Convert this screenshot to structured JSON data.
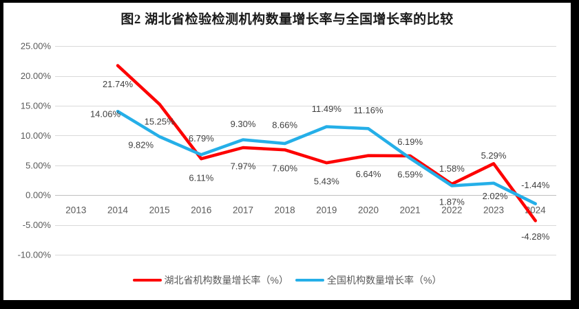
{
  "title": "图2  湖北省检验检测机构数量增长率与全国增长率的比较",
  "colors": {
    "hubei": "#FD0000",
    "national": "#25AFE8",
    "grid": "#D9D9D9",
    "axis": "#BFBFBF",
    "tick_text": "#595959",
    "label_text": "#3F3F3F",
    "frame": "#000000",
    "background": "#FFFFFF"
  },
  "legend": {
    "items": [
      {
        "label": "湖北省机构数量增长率（%）",
        "series": "hubei"
      },
      {
        "label": "全国机构数量增长率（%）",
        "series": "national"
      }
    ]
  },
  "chart_data": {
    "type": "line",
    "title": "图2  湖北省检验检测机构数量增长率与全国增长率的比较",
    "categories": [
      "2013",
      "2014",
      "2015",
      "2016",
      "2017",
      "2018",
      "2019",
      "2020",
      "2021",
      "2022",
      "2023",
      "2024"
    ],
    "ylim": [
      -10,
      25
    ],
    "grid": "horizontal",
    "legend_position": "bottom",
    "yticks": [
      {
        "value": 25,
        "label": "25.00%"
      },
      {
        "value": 20,
        "label": "20.00%"
      },
      {
        "value": 15,
        "label": "15.00%"
      },
      {
        "value": 10,
        "label": "10.00%"
      },
      {
        "value": 5,
        "label": "5.00%"
      },
      {
        "value": 0,
        "label": "0.00%"
      },
      {
        "value": -5,
        "label": "-5.00%"
      },
      {
        "value": -10,
        "label": "-10.00%"
      }
    ],
    "series": [
      {
        "name": "湖北省机构数量增长率（%）",
        "color_key": "hubei",
        "values": [
          null,
          21.74,
          15.25,
          6.11,
          7.97,
          7.6,
          5.43,
          6.64,
          6.59,
          1.87,
          5.29,
          -4.28
        ],
        "labels": [
          null,
          "21.74%",
          "15.25%",
          "6.11%",
          "7.97%",
          "7.60%",
          "5.43%",
          "6.64%",
          "6.59%",
          "1.87%",
          "5.29%",
          "-4.28%"
        ],
        "label_offsets": [
          null,
          [
            0,
            27
          ],
          [
            0,
            25
          ],
          [
            0,
            28
          ],
          [
            0,
            27
          ],
          [
            0,
            27
          ],
          [
            0,
            27
          ],
          [
            0,
            27
          ],
          [
            0,
            27
          ],
          [
            0,
            26
          ],
          [
            0,
            -12
          ],
          [
            0,
            23
          ]
        ]
      },
      {
        "name": "全国机构数量增长率（%）",
        "color_key": "national",
        "values": [
          null,
          14.06,
          9.82,
          6.79,
          9.3,
          8.66,
          11.49,
          11.16,
          6.19,
          1.58,
          2.02,
          -1.44
        ],
        "labels": [
          null,
          "14.06%",
          "9.82%",
          "6.79%",
          "9.30%",
          "8.66%",
          "11.49%",
          "11.16%",
          "6.19%",
          "1.58%",
          "2.02%",
          "-1.44%"
        ],
        "label_offsets": [
          null,
          [
            -18,
            4
          ],
          [
            -27,
            12
          ],
          [
            0,
            -24
          ],
          [
            0,
            -23
          ],
          [
            0,
            -27
          ],
          [
            0,
            -26
          ],
          [
            0,
            -27
          ],
          [
            0,
            -24
          ],
          [
            0,
            -25
          ],
          [
            2,
            19
          ],
          [
            0,
            -27
          ]
        ]
      }
    ]
  }
}
